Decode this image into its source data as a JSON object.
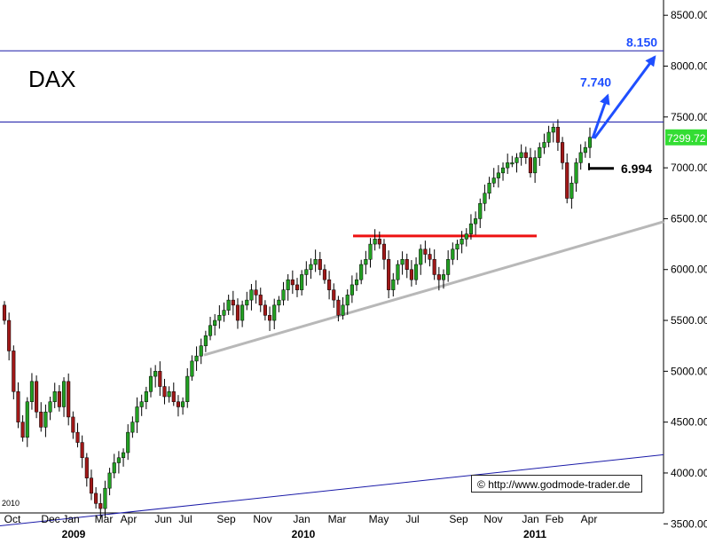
{
  "chart_data": {
    "type": "candlestick",
    "title": "DAX",
    "price_tag": "7299.72",
    "colors": {
      "up": "#22a022",
      "down": "#a01818",
      "support_line": "#b8b8b8",
      "channel_line": "#1a1aa8",
      "resistance_line": "#ee1111",
      "target_arrow": "#1f4fff",
      "price_tag_bg": "#33dd33"
    },
    "y_axis": {
      "range": [
        3450,
        8650
      ],
      "ticks": [
        "3500.00",
        "4000.00",
        "4500.00",
        "5000.00",
        "5500.00",
        "6000.00",
        "6500.00",
        "7000.00",
        "7500.00",
        "8000.00",
        "8500.00"
      ]
    },
    "x_axis": {
      "months": [
        "Oct",
        "Dec",
        "Jan",
        "Mar",
        "Apr",
        "Jun",
        "Jul",
        "Sep",
        "Nov",
        "Jan",
        "Mar",
        "May",
        "Jul",
        "Sep",
        "Nov",
        "Jan",
        "Feb",
        "Apr"
      ],
      "years": [
        "2009",
        "2010",
        "2011"
      ],
      "corner_label": "2010"
    },
    "levels": {
      "top_line": "8.150",
      "target": "7.740",
      "support": "6.994",
      "resistance": 6330,
      "upper_horizontal": 7450
    },
    "weekly_close": [
      5500,
      5200,
      4800,
      4500,
      4350,
      4700,
      4900,
      4600,
      4450,
      4600,
      4700,
      4800,
      4650,
      4900,
      4550,
      4400,
      4300,
      4150,
      3950,
      3800,
      3700,
      3650,
      3850,
      4000,
      4100,
      4150,
      4200,
      4400,
      4500,
      4650,
      4700,
      4800,
      4950,
      5000,
      4850,
      4750,
      4800,
      4700,
      4650,
      4700,
      4950,
      5100,
      5150,
      5250,
      5350,
      5450,
      5500,
      5550,
      5600,
      5700,
      5650,
      5500,
      5650,
      5700,
      5800,
      5750,
      5650,
      5550,
      5500,
      5650,
      5700,
      5800,
      5900,
      5850,
      5800,
      5950,
      6000,
      6050,
      6100,
      6000,
      5900,
      5800,
      5700,
      5550,
      5650,
      5750,
      5850,
      5900,
      6050,
      6100,
      6250,
      6300,
      6250,
      6100,
      5800,
      5900,
      6050,
      6100,
      6000,
      5900,
      6050,
      6200,
      6150,
      6100,
      5950,
      5900,
      5950,
      6100,
      6200,
      6250,
      6300,
      6350,
      6450,
      6500,
      6650,
      6750,
      6850,
      6900,
      6950,
      7000,
      7050,
      7050,
      7100,
      7150,
      7100,
      6950,
      7100,
      7200,
      7250,
      7350,
      7400,
      7250,
      7050,
      6700,
      6850,
      7050,
      7150,
      7200,
      7300
    ]
  }
}
